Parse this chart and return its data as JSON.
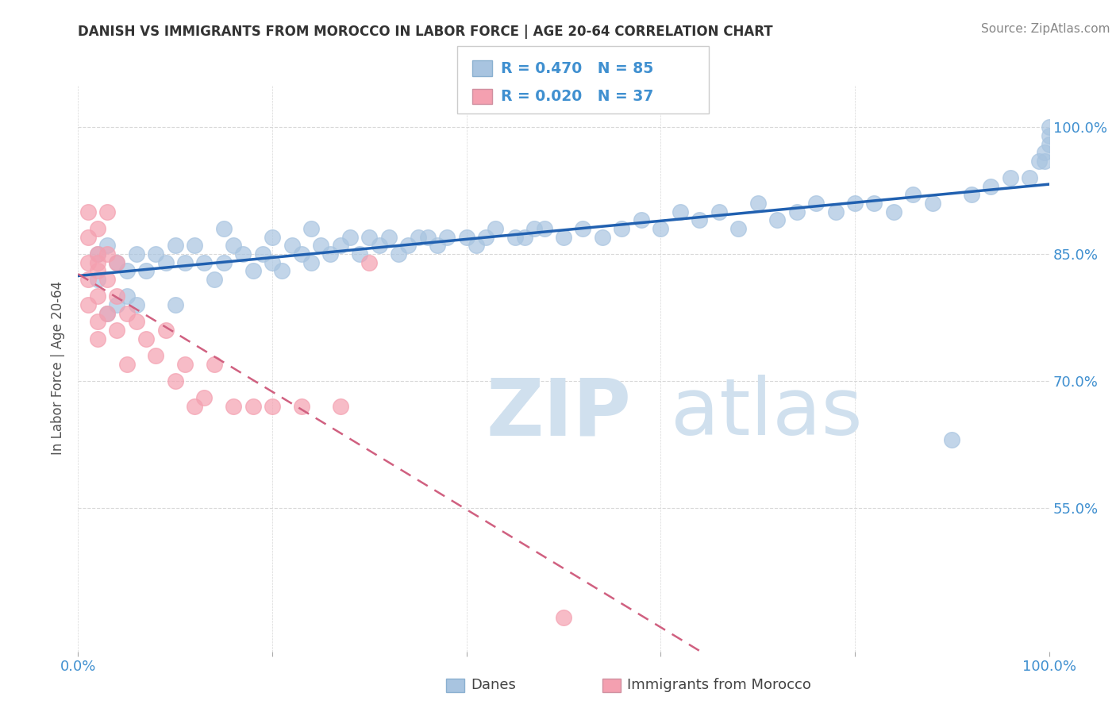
{
  "title": "DANISH VS IMMIGRANTS FROM MOROCCO IN LABOR FORCE | AGE 20-64 CORRELATION CHART",
  "source": "Source: ZipAtlas.com",
  "ylabel": "In Labor Force | Age 20-64",
  "xlim": [
    0.0,
    1.0
  ],
  "ylim": [
    0.38,
    1.05
  ],
  "yticks": [
    0.55,
    0.7,
    0.85,
    1.0
  ],
  "ytick_labels": [
    "55.0%",
    "70.0%",
    "85.0%",
    "100.0%"
  ],
  "xticks": [
    0.0,
    0.2,
    0.4,
    0.6,
    0.8,
    1.0
  ],
  "xtick_labels": [
    "0.0%",
    "",
    "",
    "",
    "",
    "100.0%"
  ],
  "danes_R": 0.47,
  "danes_N": 85,
  "morocco_R": 0.02,
  "morocco_N": 37,
  "legend_label_danes": "Danes",
  "legend_label_morocco": "Immigrants from Morocco",
  "danes_color": "#a8c4e0",
  "danes_line_color": "#2060b0",
  "morocco_color": "#f4a0b0",
  "morocco_line_color": "#d06080",
  "danes_x": [
    0.02,
    0.02,
    0.03,
    0.03,
    0.04,
    0.04,
    0.05,
    0.05,
    0.06,
    0.06,
    0.07,
    0.08,
    0.09,
    0.1,
    0.1,
    0.11,
    0.12,
    0.13,
    0.14,
    0.15,
    0.15,
    0.16,
    0.17,
    0.18,
    0.19,
    0.2,
    0.2,
    0.21,
    0.22,
    0.23,
    0.24,
    0.24,
    0.25,
    0.26,
    0.27,
    0.28,
    0.29,
    0.3,
    0.31,
    0.32,
    0.33,
    0.34,
    0.35,
    0.36,
    0.37,
    0.38,
    0.4,
    0.41,
    0.42,
    0.43,
    0.45,
    0.46,
    0.47,
    0.48,
    0.5,
    0.52,
    0.54,
    0.56,
    0.58,
    0.6,
    0.62,
    0.64,
    0.66,
    0.68,
    0.7,
    0.72,
    0.74,
    0.76,
    0.78,
    0.8,
    0.82,
    0.84,
    0.86,
    0.88,
    0.9,
    0.92,
    0.94,
    0.96,
    0.98,
    0.99,
    0.995,
    0.995,
    1.0,
    1.0,
    1.0
  ],
  "danes_y": [
    0.82,
    0.85,
    0.78,
    0.86,
    0.79,
    0.84,
    0.8,
    0.83,
    0.79,
    0.85,
    0.83,
    0.85,
    0.84,
    0.79,
    0.86,
    0.84,
    0.86,
    0.84,
    0.82,
    0.84,
    0.88,
    0.86,
    0.85,
    0.83,
    0.85,
    0.87,
    0.84,
    0.83,
    0.86,
    0.85,
    0.84,
    0.88,
    0.86,
    0.85,
    0.86,
    0.87,
    0.85,
    0.87,
    0.86,
    0.87,
    0.85,
    0.86,
    0.87,
    0.87,
    0.86,
    0.87,
    0.87,
    0.86,
    0.87,
    0.88,
    0.87,
    0.87,
    0.88,
    0.88,
    0.87,
    0.88,
    0.87,
    0.88,
    0.89,
    0.88,
    0.9,
    0.89,
    0.9,
    0.88,
    0.91,
    0.89,
    0.9,
    0.91,
    0.9,
    0.91,
    0.91,
    0.9,
    0.92,
    0.91,
    0.63,
    0.92,
    0.93,
    0.94,
    0.94,
    0.96,
    0.96,
    0.97,
    0.98,
    0.99,
    1.0
  ],
  "morocco_x": [
    0.01,
    0.01,
    0.01,
    0.01,
    0.01,
    0.02,
    0.02,
    0.02,
    0.02,
    0.02,
    0.02,
    0.02,
    0.03,
    0.03,
    0.03,
    0.03,
    0.04,
    0.04,
    0.04,
    0.05,
    0.05,
    0.06,
    0.07,
    0.08,
    0.09,
    0.1,
    0.11,
    0.12,
    0.13,
    0.14,
    0.16,
    0.18,
    0.2,
    0.23,
    0.27,
    0.3,
    0.5
  ],
  "morocco_y": [
    0.82,
    0.84,
    0.87,
    0.79,
    0.9,
    0.75,
    0.8,
    0.83,
    0.85,
    0.88,
    0.77,
    0.84,
    0.78,
    0.82,
    0.85,
    0.9,
    0.76,
    0.8,
    0.84,
    0.72,
    0.78,
    0.77,
    0.75,
    0.73,
    0.76,
    0.7,
    0.72,
    0.67,
    0.68,
    0.72,
    0.67,
    0.67,
    0.67,
    0.67,
    0.67,
    0.84,
    0.42
  ],
  "watermark_zip": "ZIP",
  "watermark_atlas": "atlas",
  "watermark_color": "#d0e0ee",
  "background_color": "#ffffff",
  "grid_color": "#d8d8d8",
  "tick_color": "#4090d0",
  "title_color": "#333333",
  "source_color": "#888888"
}
